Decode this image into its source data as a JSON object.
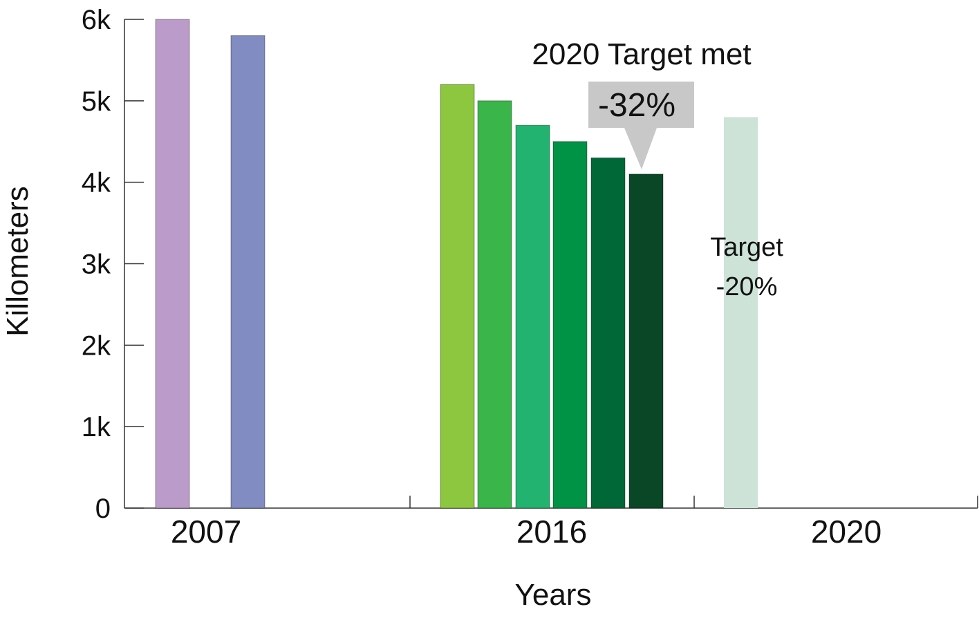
{
  "chart_data": {
    "type": "bar",
    "xlabel": "Years",
    "ylabel": "Killometers",
    "ylim": [
      0,
      6000
    ],
    "yticks": [
      {
        "value": 0,
        "label": "0"
      },
      {
        "value": 1000,
        "label": "1k"
      },
      {
        "value": 2000,
        "label": "2k"
      },
      {
        "value": 3000,
        "label": "3k"
      },
      {
        "value": 4000,
        "label": "4k"
      },
      {
        "value": 5000,
        "label": "5k"
      },
      {
        "value": 6000,
        "label": "6k"
      }
    ],
    "categories": [
      "2007",
      "2016",
      "2020"
    ],
    "groups": [
      {
        "category": "2007",
        "bars": [
          {
            "value": 6000,
            "color": "#bb9bc9"
          },
          {
            "value": 5800,
            "color": "#818cc2"
          }
        ]
      },
      {
        "category": "2016",
        "bars": [
          {
            "value": 5200,
            "color": "#8dc63f"
          },
          {
            "value": 5000,
            "color": "#39b54a"
          },
          {
            "value": 4700,
            "color": "#21b36f"
          },
          {
            "value": 4500,
            "color": "#009245"
          },
          {
            "value": 4300,
            "color": "#006837"
          },
          {
            "value": 4100,
            "color": "#094726"
          }
        ]
      },
      {
        "category": "2020",
        "bars": [
          {
            "value": 4800,
            "color": "#cde3d8"
          }
        ]
      }
    ],
    "grid": false,
    "annotations": {
      "target_met_title": "2020 Target met",
      "target_met_value": "-32%",
      "target_label": "Target",
      "target_value": "-20%"
    },
    "callout_color": "#c8c8c8"
  }
}
